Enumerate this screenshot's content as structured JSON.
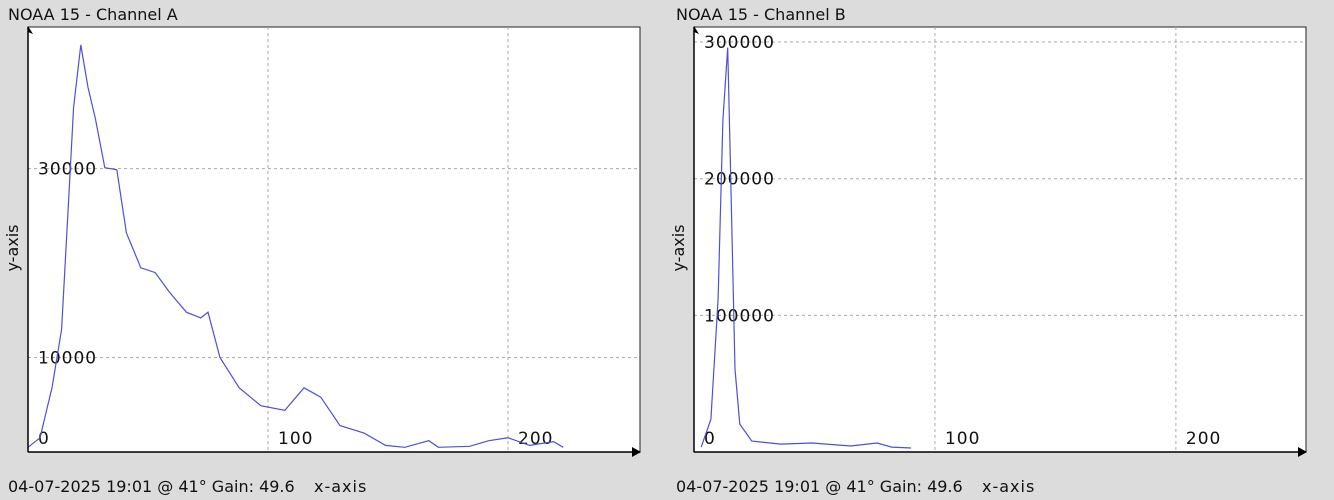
{
  "chart_data": [
    {
      "type": "line",
      "title": "NOAA 15 - Channel A",
      "y_label": "y-axis",
      "x_label": "x-axis",
      "status": "04-07-2025 19:01 @ 41° Gain: 49.6",
      "color": "#4f4fd9",
      "x": [
        0,
        5,
        10,
        14,
        17,
        19,
        22,
        25,
        28,
        32,
        37,
        41,
        47,
        53,
        59,
        66,
        72,
        75,
        80,
        88,
        97,
        107,
        115,
        122,
        130,
        140,
        149,
        157,
        167,
        171,
        184,
        192,
        200,
        209,
        219,
        223
      ],
      "values": [
        500,
        1500,
        6800,
        13000,
        27000,
        36500,
        43100,
        38600,
        35400,
        30100,
        29900,
        23200,
        19500,
        19000,
        16900,
        14800,
        14200,
        14800,
        10000,
        6800,
        4900,
        4400,
        6800,
        5800,
        2800,
        2000,
        700,
        500,
        1200,
        500,
        600,
        1200,
        1500,
        700,
        1100,
        500
      ],
      "xlim": [
        0,
        255
      ],
      "ylim": [
        0,
        45000
      ],
      "xticks": [
        0,
        100,
        200
      ],
      "yticks": [
        10000,
        30000
      ],
      "grid": true
    },
    {
      "type": "line",
      "title": "NOAA 15 - Channel B",
      "y_label": "y-axis",
      "x_label": "x-axis",
      "status": "04-07-2025 19:01 @ 41° Gain: 49.6",
      "color": "#4f4fd9",
      "x": [
        3,
        7,
        10,
        12,
        14,
        15,
        17,
        19,
        24,
        36,
        49,
        65,
        76,
        82,
        90
      ],
      "values": [
        3600,
        24000,
        112000,
        243000,
        296000,
        221000,
        60600,
        20400,
        8000,
        5800,
        6600,
        4400,
        6600,
        3600,
        2900
      ],
      "xlim": [
        0,
        254
      ],
      "ylim": [
        0,
        311000
      ],
      "xticks": [
        0,
        100,
        200
      ],
      "yticks": [
        100000,
        200000,
        300000
      ],
      "grid": true
    }
  ]
}
